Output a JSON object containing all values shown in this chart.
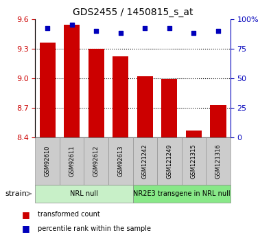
{
  "title": "GDS2455 / 1450815_s_at",
  "samples": [
    "GSM92610",
    "GSM92611",
    "GSM92612",
    "GSM92613",
    "GSM121242",
    "GSM121249",
    "GSM121315",
    "GSM121316"
  ],
  "transformed_counts": [
    9.36,
    9.54,
    9.3,
    9.22,
    9.02,
    8.99,
    8.47,
    8.73
  ],
  "percentile_rank_values": [
    92,
    95,
    90,
    88,
    92,
    92,
    88,
    90
  ],
  "groups": [
    {
      "label": "NRL null",
      "start": 0,
      "end": 4,
      "color": "#c8f0c8"
    },
    {
      "label": "NR2E3 transgene in NRL null",
      "start": 4,
      "end": 8,
      "color": "#88e888"
    }
  ],
  "ylim_left": [
    8.4,
    9.6
  ],
  "ylim_right": [
    0,
    100
  ],
  "yticks_left": [
    8.4,
    8.7,
    9.0,
    9.3,
    9.6
  ],
  "yticks_right": [
    0,
    25,
    50,
    75,
    100
  ],
  "bar_color": "#cc0000",
  "dot_color": "#0000bb",
  "bar_width": 0.65,
  "background_color": "#ffffff",
  "tick_label_color_left": "#cc0000",
  "tick_label_color_right": "#0000bb",
  "grid_color": "#000000",
  "sample_area_color": "#cccccc",
  "legend_red_label": "transformed count",
  "legend_blue_label": "percentile rank within the sample"
}
